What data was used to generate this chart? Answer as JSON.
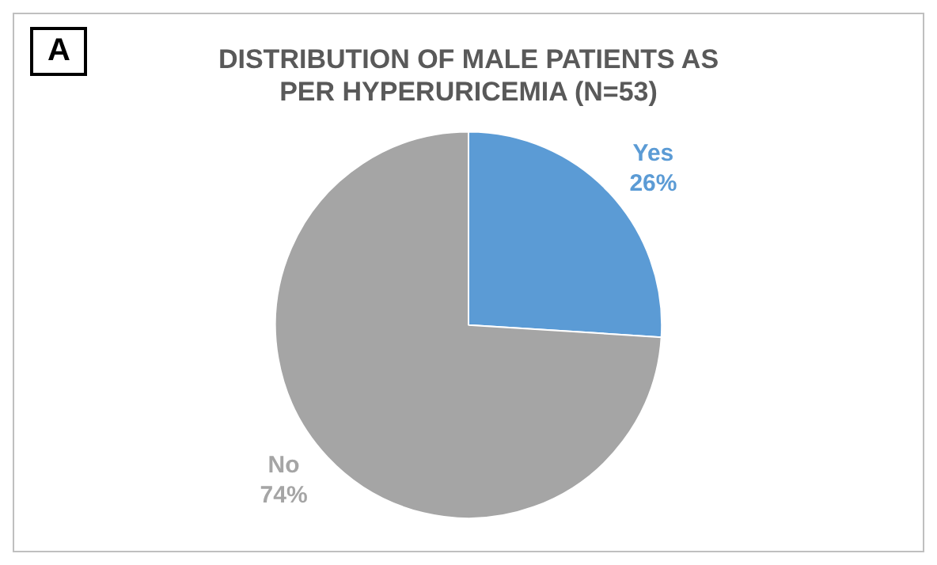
{
  "chart_data": {
    "type": "pie",
    "title": "DISTRIBUTION OF MALE PATIENTS AS PER HYPERURICEMIA (N=53)",
    "annotations": [
      "A"
    ],
    "categories": [
      "Yes",
      "No"
    ],
    "values": [
      26,
      74
    ],
    "colors": [
      "#5b9bd5",
      "#a5a5a5"
    ],
    "value_labels": [
      "26%",
      "74%"
    ],
    "legend": false
  }
}
